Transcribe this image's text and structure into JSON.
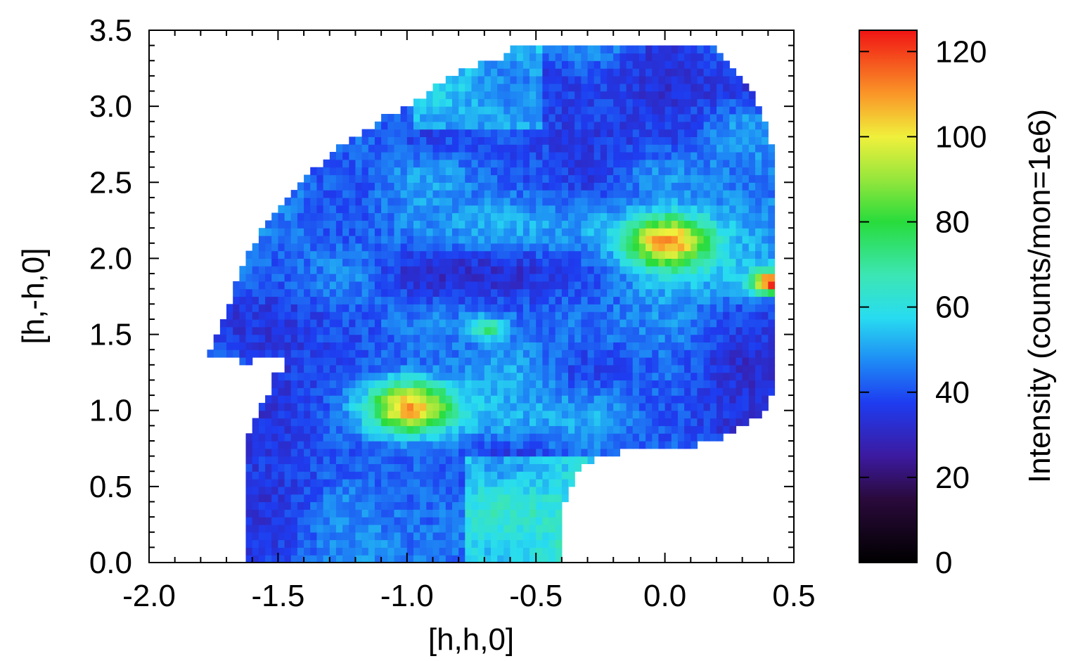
{
  "chart_data": {
    "type": "heatmap",
    "xlabel": "[h,h,0]",
    "ylabel": "[h,-h,0]",
    "xlim": [
      -2.0,
      0.5
    ],
    "ylim": [
      0.0,
      3.5
    ],
    "x_ticks": [
      -2.0,
      -1.5,
      -1.0,
      -0.5,
      0.0,
      0.5
    ],
    "x_tick_labels": [
      "-2.0",
      "-1.5",
      "-1.0",
      "-0.5",
      "0.0",
      "0.5"
    ],
    "y_ticks": [
      0.0,
      0.5,
      1.0,
      1.5,
      2.0,
      2.5,
      3.0,
      3.5
    ],
    "y_tick_labels": [
      "0.0",
      "0.5",
      "1.0",
      "1.5",
      "2.0",
      "2.5",
      "3.0",
      "3.5"
    ],
    "colorbar": {
      "label": "Intensity (counts/mon=1e6)",
      "range": [
        0,
        125
      ],
      "ticks": [
        0,
        20,
        40,
        60,
        80,
        100,
        120
      ],
      "tick_labels": [
        "0",
        "20",
        "40",
        "60",
        "80",
        "100",
        "120"
      ],
      "colormap": "rainbow (black-purple-blue-cyan-green-yellow-red)"
    },
    "grid_step": 0.05,
    "background_intensity": 42,
    "peaks": [
      {
        "x": 0.0,
        "y": 2.1,
        "intensity": 118
      },
      {
        "x": -1.0,
        "y": 1.0,
        "intensity": 112
      },
      {
        "x": -0.7,
        "y": 1.52,
        "intensity": 74
      },
      {
        "x": 0.4,
        "y": 1.82,
        "intensity": 122
      }
    ],
    "coverage_note": "intensity pixels only over the measured region; remainder blank",
    "grid": false
  }
}
